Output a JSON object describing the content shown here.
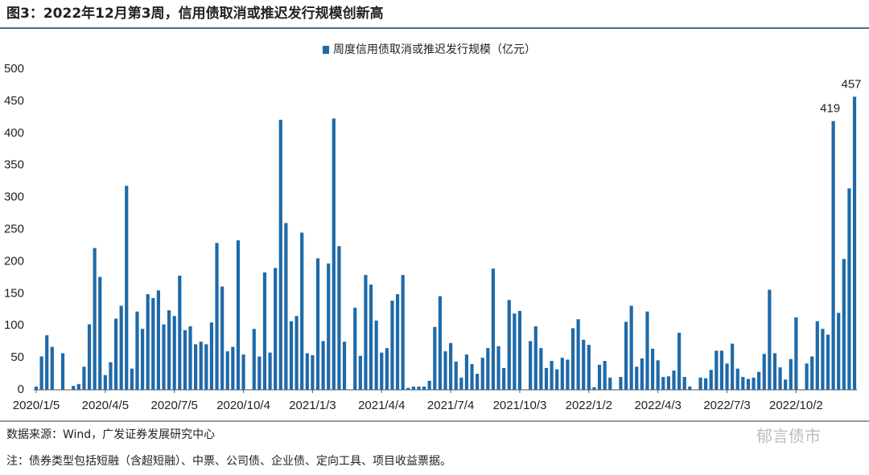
{
  "header": {
    "title": "图3：2022年12月第3周，信用债取消或推迟发行规模创新高"
  },
  "chart_data": {
    "type": "bar",
    "categories": [
      "2020/1/5",
      null,
      null,
      null,
      null,
      null,
      null,
      null,
      null,
      null,
      null,
      null,
      null,
      "2020/4/5",
      null,
      null,
      null,
      null,
      null,
      null,
      null,
      null,
      null,
      null,
      null,
      null,
      "2020/7/5",
      null,
      null,
      null,
      null,
      null,
      null,
      null,
      null,
      null,
      null,
      null,
      null,
      "2020/10/4",
      null,
      null,
      null,
      null,
      null,
      null,
      null,
      null,
      null,
      null,
      null,
      null,
      "2021/1/3",
      null,
      null,
      null,
      null,
      null,
      null,
      null,
      null,
      null,
      null,
      null,
      null,
      "2021/4/4",
      null,
      null,
      null,
      null,
      null,
      null,
      null,
      null,
      null,
      null,
      null,
      null,
      "2021/7/4",
      null,
      null,
      null,
      null,
      null,
      null,
      null,
      null,
      null,
      null,
      null,
      null,
      "2021/10/3",
      null,
      null,
      null,
      null,
      null,
      null,
      null,
      null,
      null,
      null,
      null,
      null,
      "2022/1/2",
      null,
      null,
      null,
      null,
      null,
      null,
      null,
      null,
      null,
      null,
      null,
      null,
      "2022/4/3",
      null,
      null,
      null,
      null,
      null,
      null,
      null,
      null,
      null,
      null,
      null,
      null,
      "2022/7/3",
      null,
      null,
      null,
      null,
      null,
      null,
      null,
      null,
      null,
      null,
      null,
      null,
      "2022/10/2",
      null,
      null,
      null,
      null,
      null,
      null,
      null,
      null,
      null,
      null,
      null
    ],
    "series": [
      {
        "name": "周度信用债取消或推迟发行规模（亿元）",
        "color": "#1f6aa8",
        "values": [
          5,
          52,
          85,
          67,
          0,
          57,
          0,
          6,
          9,
          36,
          102,
          221,
          176,
          23,
          43,
          111,
          131,
          318,
          33,
          122,
          95,
          149,
          143,
          155,
          102,
          124,
          115,
          178,
          93,
          99,
          71,
          75,
          71,
          105,
          229,
          161,
          60,
          67,
          233,
          55,
          0,
          95,
          52,
          183,
          58,
          190,
          421,
          260,
          107,
          115,
          245,
          57,
          54,
          205,
          76,
          197,
          423,
          224,
          75,
          0,
          128,
          53,
          179,
          164,
          108,
          58,
          65,
          139,
          149,
          179,
          3,
          5,
          5,
          5,
          14,
          98,
          146,
          60,
          73,
          44,
          19,
          55,
          40,
          25,
          50,
          65,
          189,
          68,
          34,
          140,
          119,
          123,
          0,
          76,
          99,
          65,
          34,
          45,
          32,
          50,
          47,
          96,
          110,
          78,
          70,
          4,
          39,
          45,
          19,
          0,
          20,
          106,
          131,
          36,
          49,
          122,
          64,
          46,
          20,
          21,
          30,
          89,
          20,
          5,
          0,
          19,
          18,
          31,
          61,
          61,
          41,
          72,
          33,
          20,
          17,
          19,
          28,
          56,
          156,
          57,
          35,
          16,
          48,
          113,
          0,
          41,
          52,
          107,
          95,
          86,
          419,
          120,
          204,
          314,
          457
        ],
        "value_labels": [
          null,
          null,
          null,
          null,
          null,
          null,
          null,
          null,
          null,
          null,
          null,
          null,
          null,
          null,
          null,
          null,
          null,
          null,
          null,
          null,
          null,
          null,
          null,
          null,
          null,
          null,
          null,
          null,
          null,
          null,
          null,
          null,
          null,
          null,
          null,
          null,
          null,
          null,
          null,
          null,
          null,
          null,
          null,
          null,
          null,
          null,
          null,
          null,
          null,
          null,
          null,
          null,
          null,
          null,
          null,
          null,
          null,
          null,
          null,
          null,
          null,
          null,
          null,
          null,
          null,
          null,
          null,
          null,
          null,
          null,
          null,
          null,
          null,
          null,
          null,
          null,
          null,
          null,
          null,
          null,
          null,
          null,
          null,
          null,
          null,
          null,
          null,
          null,
          null,
          null,
          null,
          null,
          null,
          null,
          null,
          null,
          null,
          null,
          null,
          null,
          null,
          null,
          null,
          null,
          null,
          null,
          null,
          null,
          null,
          null,
          null,
          null,
          null,
          null,
          null,
          null,
          null,
          null,
          null,
          null,
          null,
          null,
          null,
          null,
          null,
          null,
          null,
          null,
          null,
          null,
          null,
          null,
          null,
          null,
          null,
          null,
          null,
          null,
          null,
          null,
          null,
          null,
          null,
          null,
          null,
          null,
          null,
          null,
          null,
          null,
          "419",
          null,
          null,
          null,
          "457"
        ]
      }
    ],
    "ylim": [
      0,
      500
    ],
    "yticks": [
      0,
      50,
      100,
      150,
      200,
      250,
      300,
      350,
      400,
      450,
      500
    ],
    "grid": false,
    "legend": "top"
  },
  "footer": {
    "source": "数据来源：Wind，广发证券发展研究中心",
    "note": "注：债券类型包括短融（含超短融）、中票、公司债、企业债、定向工具、项目收益票据。",
    "watermark": "郁言债市"
  }
}
